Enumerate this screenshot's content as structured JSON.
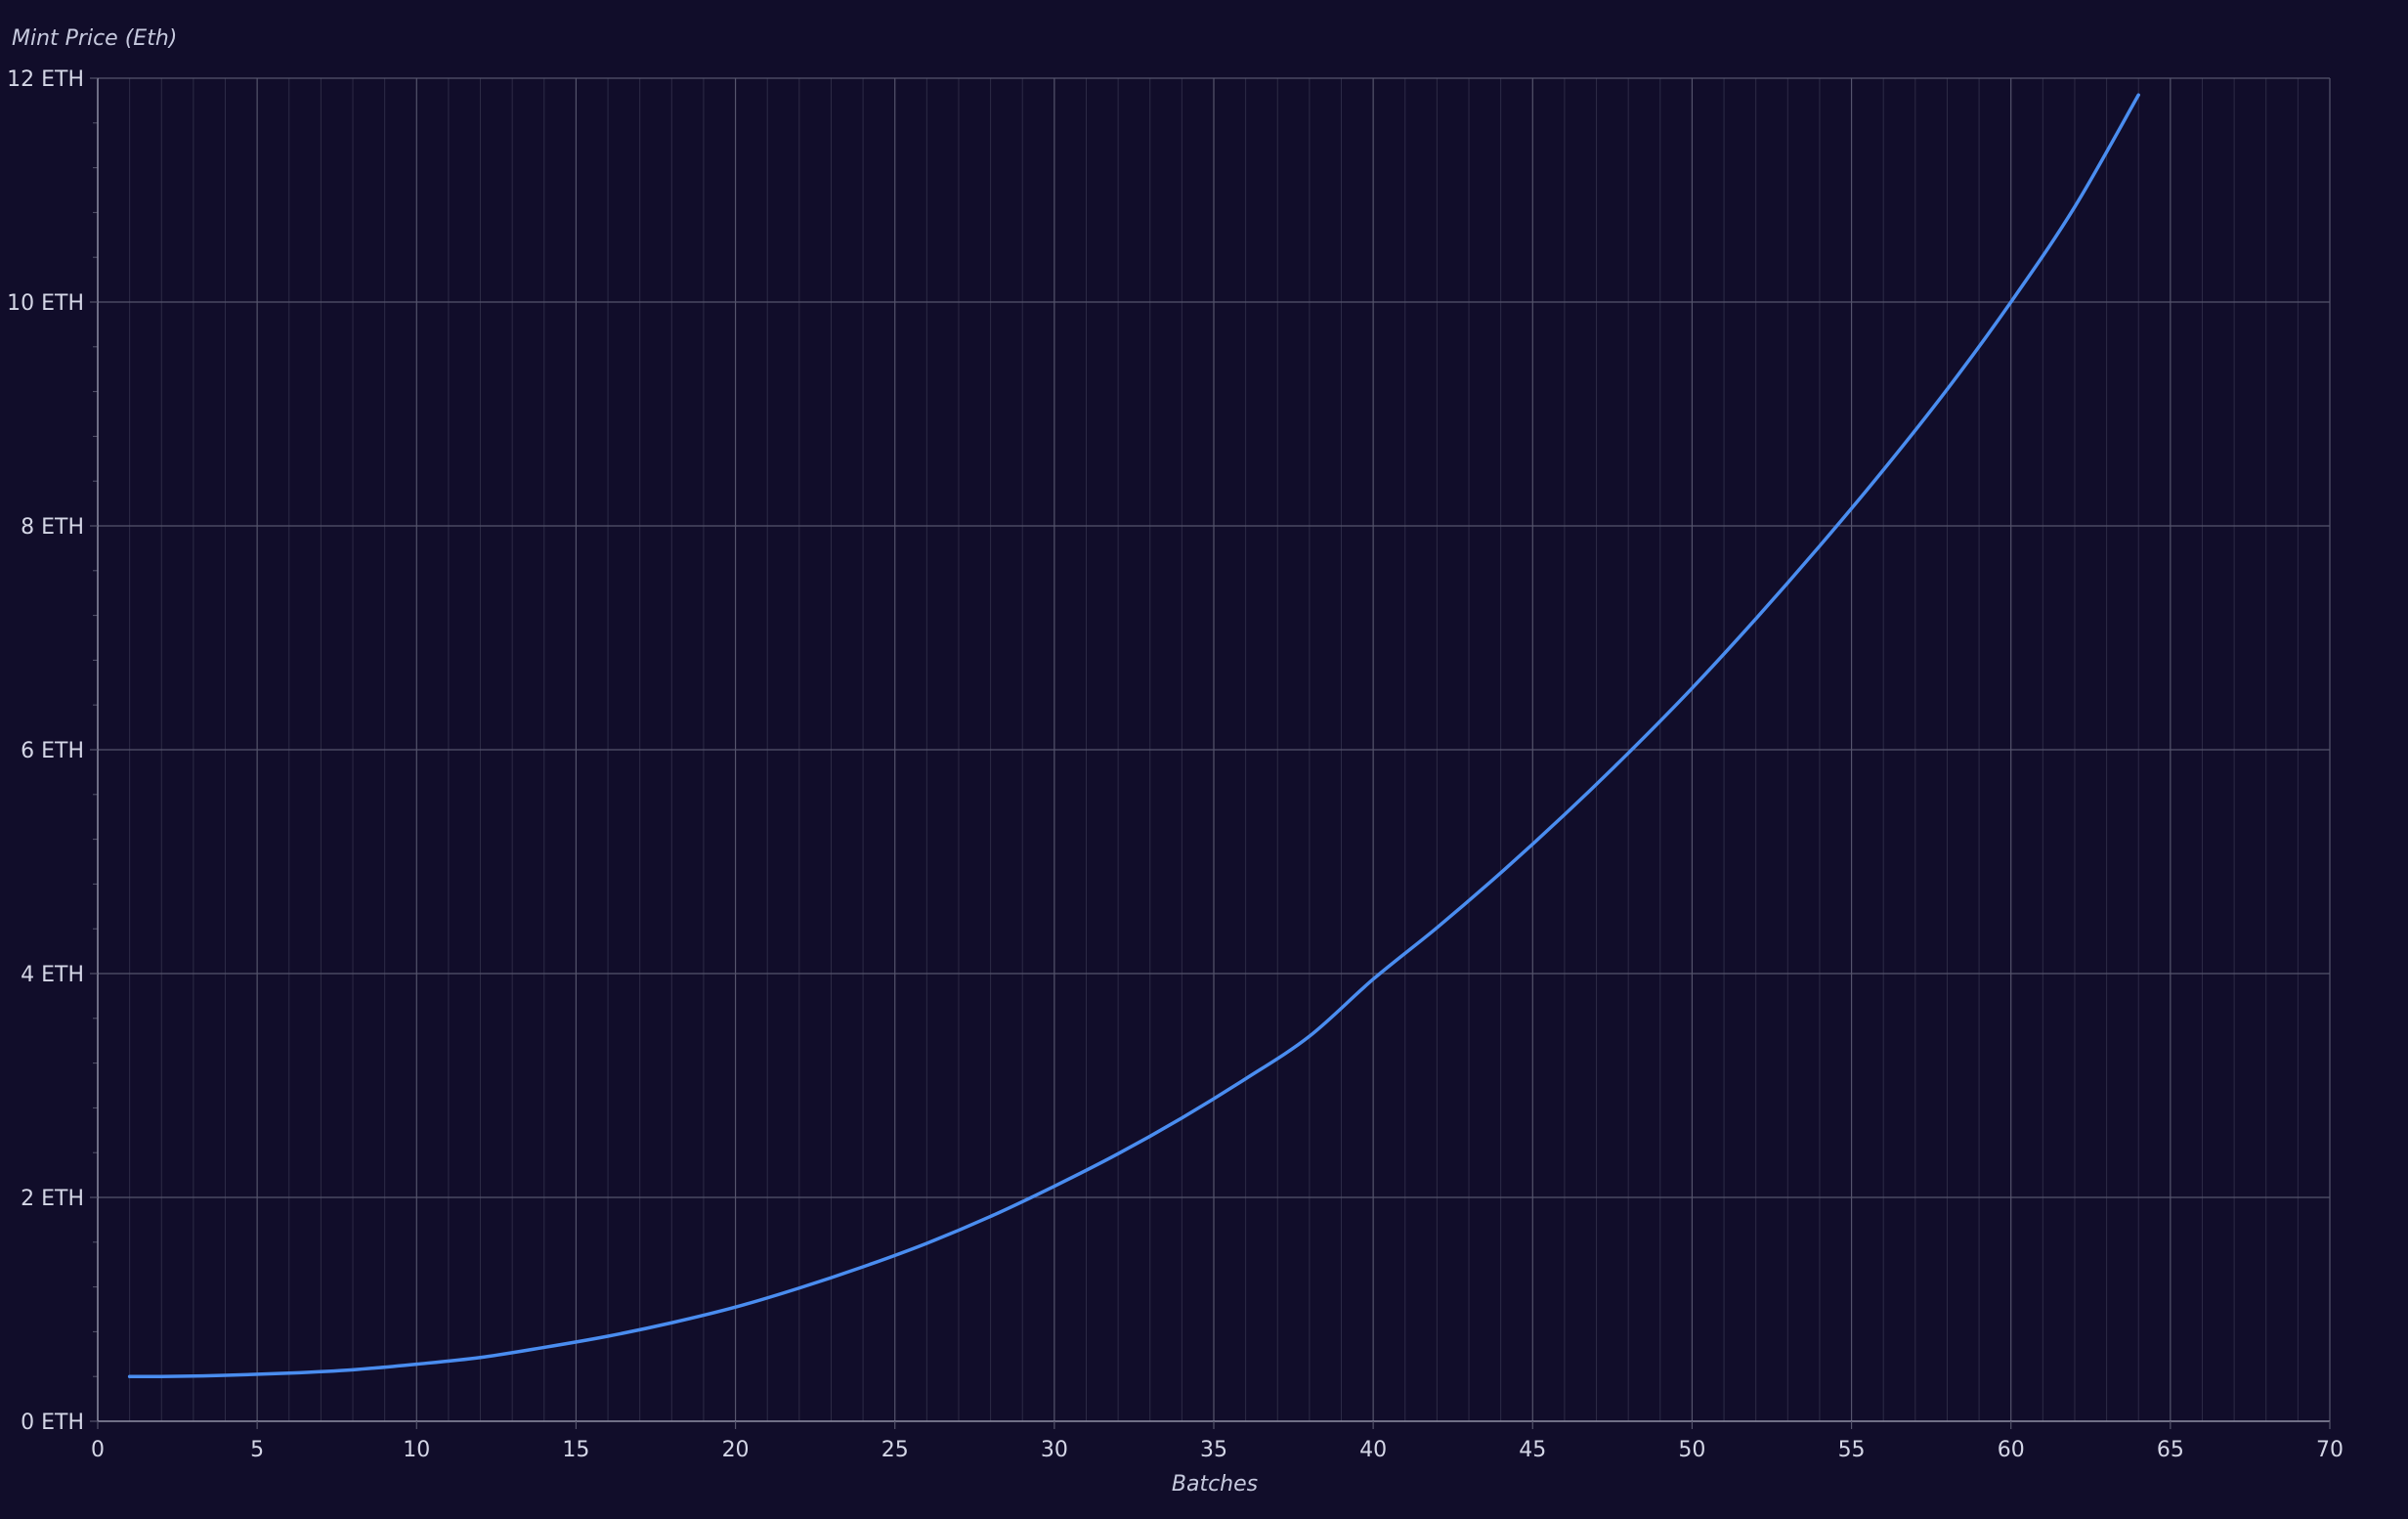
{
  "chart_data": {
    "type": "line",
    "title": "",
    "xlabel": "Batches",
    "ylabel": "Mint Price (Eth)",
    "xlim": [
      0,
      70
    ],
    "ylim": [
      0,
      12
    ],
    "x_ticks": [
      "0",
      "5",
      "10",
      "15",
      "20",
      "25",
      "30",
      "35",
      "40",
      "45",
      "50",
      "55",
      "60",
      "65",
      "70"
    ],
    "y_ticks": [
      "0 ETH",
      "2 ETH",
      "4 ETH",
      "6 ETH",
      "8 ETH",
      "10 ETH",
      "12 ETH"
    ],
    "grid": true,
    "legend": "none",
    "colors": {
      "background": "#110d2a",
      "line": "#4a8df0",
      "grid_major": "#55546c",
      "grid_minor": "#2d2b46",
      "text": "#d4d6e6"
    },
    "series": [
      {
        "x": [
          1,
          2,
          4,
          6,
          8,
          10,
          12,
          14,
          16,
          18,
          20,
          22,
          24,
          26,
          28,
          30,
          32,
          34,
          36,
          38,
          40,
          42,
          44,
          46,
          48,
          50,
          52,
          54,
          56,
          58,
          60,
          62,
          64
        ],
        "values": [
          0.4,
          0.4,
          0.41,
          0.43,
          0.46,
          0.51,
          0.57,
          0.66,
          0.76,
          0.88,
          1.02,
          1.19,
          1.38,
          1.59,
          1.83,
          2.1,
          2.39,
          2.71,
          3.06,
          3.44,
          3.95,
          4.41,
          4.9,
          5.42,
          5.97,
          6.55,
          7.17,
          7.82,
          8.5,
          9.22,
          10.0,
          10.85,
          11.85
        ]
      }
    ]
  }
}
